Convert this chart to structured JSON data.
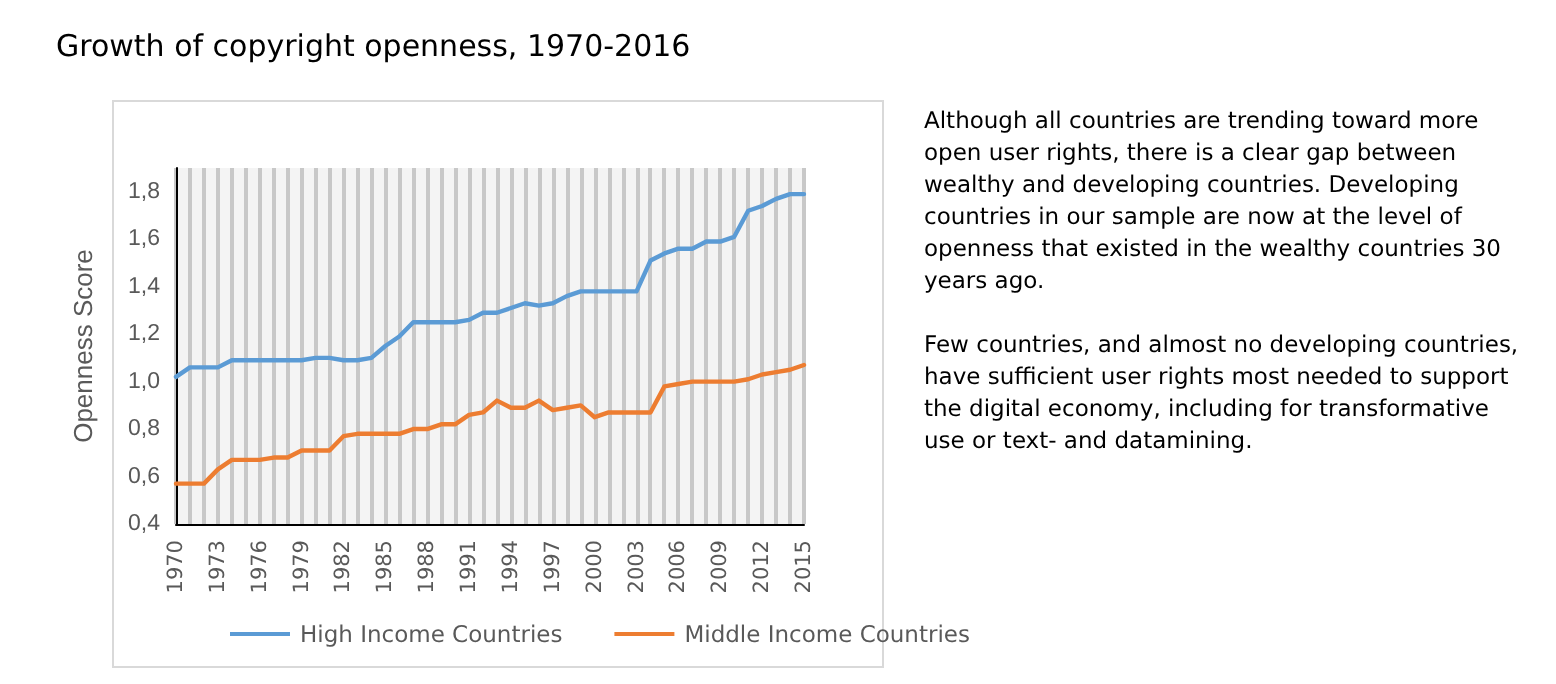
{
  "chart_data": {
    "type": "line",
    "title": "Growth of copyright openness, 1970-2016",
    "ylabel": "Openness Score",
    "categories": [
      "1970",
      null,
      null,
      "1973",
      null,
      null,
      "1976",
      null,
      null,
      "1979",
      null,
      null,
      "1982",
      null,
      null,
      "1985",
      null,
      null,
      "1988",
      null,
      null,
      "1991",
      null,
      null,
      "1994",
      null,
      null,
      "1997",
      null,
      null,
      "2000",
      null,
      null,
      "2003",
      null,
      null,
      "2006",
      null,
      null,
      "2009",
      null,
      null,
      "2012",
      null,
      null,
      "2015"
    ],
    "series": [
      {
        "name": "High Income Countries",
        "color": "#5b9bd5",
        "values": [
          1.02,
          1.06,
          1.06,
          1.06,
          1.09,
          1.09,
          1.09,
          1.09,
          1.09,
          1.09,
          1.1,
          1.1,
          1.09,
          1.09,
          1.1,
          1.15,
          1.19,
          1.25,
          1.25,
          1.25,
          1.25,
          1.26,
          1.29,
          1.29,
          1.31,
          1.33,
          1.32,
          1.33,
          1.36,
          1.38,
          1.38,
          1.38,
          1.38,
          1.38,
          1.51,
          1.54,
          1.56,
          1.56,
          1.59,
          1.59,
          1.61,
          1.72,
          1.74,
          1.77,
          1.79,
          1.79
        ]
      },
      {
        "name": "Middle Income Countries",
        "color": "#ed7d31",
        "values": [
          0.57,
          0.57,
          0.57,
          0.63,
          0.67,
          0.67,
          0.67,
          0.68,
          0.68,
          0.71,
          0.71,
          0.71,
          0.77,
          0.78,
          0.78,
          0.78,
          0.78,
          0.8,
          0.8,
          0.82,
          0.82,
          0.86,
          0.87,
          0.92,
          0.89,
          0.89,
          0.92,
          0.88,
          0.89,
          0.9,
          0.85,
          0.87,
          0.87,
          0.87,
          0.87,
          0.98,
          0.99,
          1.0,
          1.0,
          1.0,
          1.0,
          1.01,
          1.03,
          1.04,
          1.05,
          1.07
        ]
      }
    ],
    "ylim": [
      0.4,
      1.9
    ],
    "yticks": [
      {
        "value": 0.4,
        "label": "0,4"
      },
      {
        "value": 0.6,
        "label": "0,6"
      },
      {
        "value": 0.8,
        "label": "0,8"
      },
      {
        "value": 1.0,
        "label": "1,0"
      },
      {
        "value": 1.2,
        "label": "1,2"
      },
      {
        "value": 1.4,
        "label": "1,4"
      },
      {
        "value": 1.6,
        "label": "1,6"
      },
      {
        "value": 1.8,
        "label": "1,8"
      }
    ],
    "grid": "x",
    "legend": "bottom",
    "marker": "none",
    "line_style": "solid",
    "annotations": [
      "Although all countries are trending toward more open user rights, there is a clear gap between wealthy and developing countries. Developing countries in our sample are now at the level of openness that existed in the wealthy countries 30 years ago.",
      "Few countries, and almost no developing countries, have sufficient user rights most needed to support the digital economy, including for transformative use or text- and datamining."
    ]
  }
}
